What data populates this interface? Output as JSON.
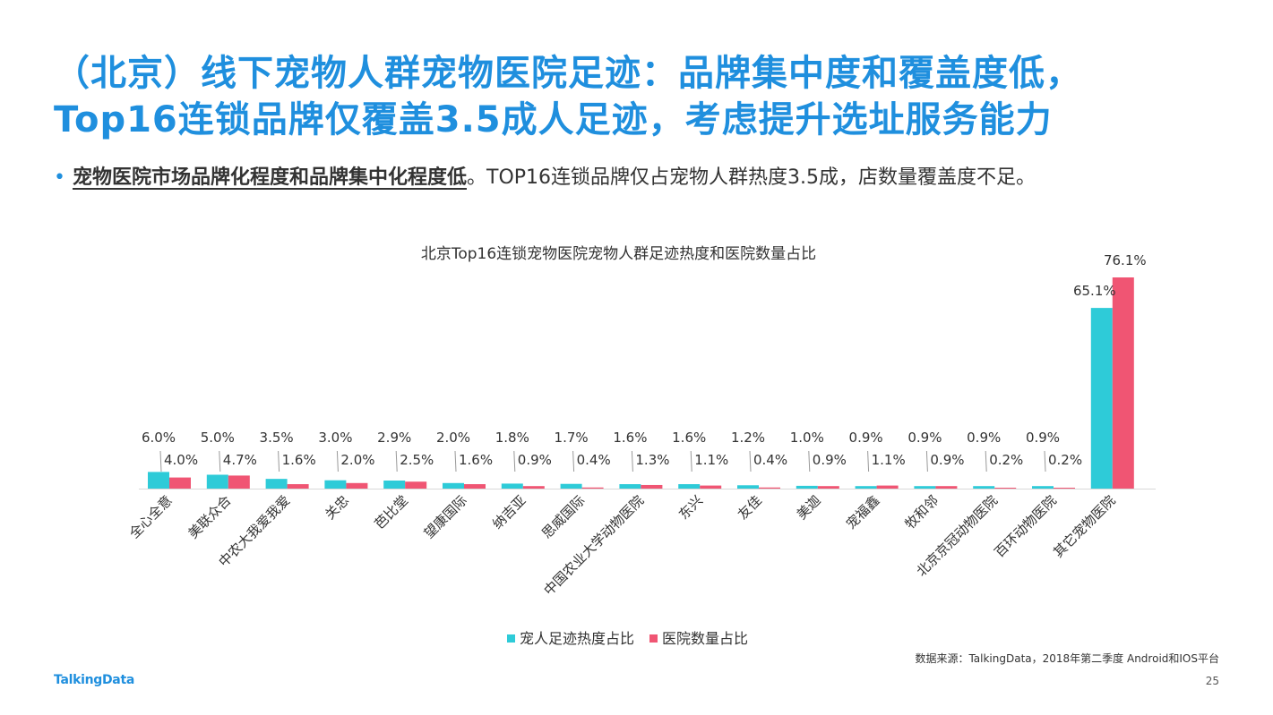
{
  "slide": {
    "title_line1": "（北京）线下宠物人群宠物医院足迹：品牌集中度和覆盖度低，",
    "title_line2": "Top16连锁品牌仅覆盖3.5成人足迹，考虑提升选址服务能力",
    "bullet_emphasis": "宠物医院市场品牌化程度和品牌集中化程度低",
    "bullet_rest": "。TOP16连锁品牌仅占宠物人群热度3.5成，店数量覆盖度不足。",
    "source": "数据来源：TalkingData，2018年第二季度 Android和IOS平台",
    "logo": "TalkingData",
    "page_number": "25"
  },
  "colors": {
    "title": "#1f8fde",
    "series1": "#2ecbd8",
    "series2": "#f05573"
  },
  "chart_data": {
    "type": "bar",
    "title": "北京Top16连锁宠物医院宠物人群足迹热度和医院数量占比",
    "xlabel": "",
    "ylabel": "",
    "ylim": [
      0,
      80
    ],
    "grid": false,
    "legend_position": "bottom",
    "categories": [
      "全心全意",
      "美联众合",
      "中农大我爱我爱",
      "关忠",
      "芭比堂",
      "望康国际",
      "纳吉亚",
      "思威国际",
      "中国农业大学动物医院",
      "东兴",
      "友佳",
      "美迦",
      "宠福鑫",
      "牧和邻",
      "北京京冠动物医院",
      "百环动物医院",
      "其它宠物医院"
    ],
    "series": [
      {
        "name": "宠人足迹热度占比",
        "values": [
          6.0,
          5.0,
          3.5,
          3.0,
          2.9,
          2.0,
          1.8,
          1.7,
          1.6,
          1.6,
          1.2,
          1.0,
          0.9,
          0.9,
          0.9,
          0.9,
          65.1
        ],
        "labels": [
          "6.0%",
          "5.0%",
          "3.5%",
          "3.0%",
          "2.9%",
          "2.0%",
          "1.8%",
          "1.7%",
          "1.6%",
          "1.6%",
          "1.2%",
          "1.0%",
          "0.9%",
          "0.9%",
          "0.9%",
          "0.9%",
          "65.1%"
        ]
      },
      {
        "name": "医院数量占比",
        "values": [
          4.0,
          4.7,
          1.6,
          2.0,
          2.5,
          1.6,
          0.9,
          0.4,
          1.3,
          1.1,
          0.4,
          0.9,
          1.1,
          0.9,
          0.2,
          0.2,
          76.1
        ],
        "labels": [
          "4.0%",
          "4.7%",
          "1.6%",
          "2.0%",
          "2.5%",
          "1.6%",
          "0.9%",
          "0.4%",
          "1.3%",
          "1.1%",
          "0.4%",
          "0.9%",
          "1.1%",
          "0.9%",
          "0.2%",
          "0.2%",
          "76.1%"
        ]
      }
    ]
  }
}
